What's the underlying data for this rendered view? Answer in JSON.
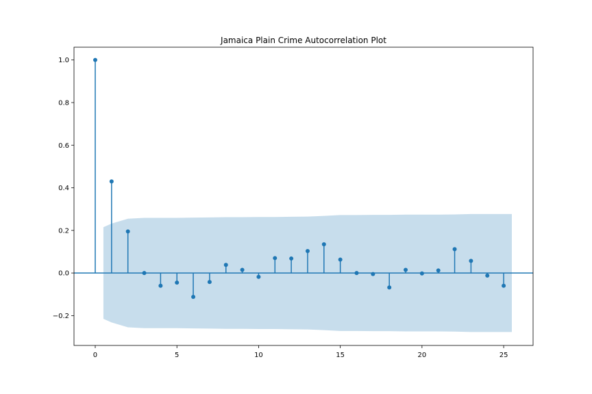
{
  "chart_data": {
    "type": "stem",
    "title": "Jamaica Plain Crime Autocorrelation Plot",
    "xlabel": "",
    "ylabel": "",
    "xlim": [
      -1.3,
      26.8
    ],
    "ylim": [
      -0.34,
      1.06
    ],
    "xticks": [
      0,
      5,
      10,
      15,
      20,
      25
    ],
    "xtick_labels": [
      "0",
      "5",
      "10",
      "15",
      "20",
      "25"
    ],
    "yticks": [
      -0.2,
      0.0,
      0.2,
      0.4,
      0.6,
      0.8,
      1.0
    ],
    "ytick_labels": [
      "−0.2",
      "0.0",
      "0.2",
      "0.4",
      "0.6",
      "0.8",
      "1.0"
    ],
    "grid": false,
    "lags": [
      0,
      1,
      2,
      3,
      4,
      5,
      6,
      7,
      8,
      9,
      10,
      11,
      12,
      13,
      14,
      15,
      16,
      17,
      18,
      19,
      20,
      21,
      22,
      23,
      24,
      25
    ],
    "values": [
      1.0,
      0.43,
      0.195,
      0.0,
      -0.06,
      -0.045,
      -0.112,
      -0.042,
      0.038,
      0.015,
      -0.018,
      0.07,
      0.068,
      0.103,
      0.135,
      0.063,
      0.0,
      -0.005,
      -0.068,
      0.015,
      -0.002,
      0.012,
      0.112,
      0.057,
      -0.012,
      -0.06
    ],
    "confidence_band": {
      "lags": [
        0.5,
        1,
        2,
        3,
        4,
        5,
        6,
        7,
        8,
        9,
        10,
        11,
        12,
        13,
        14,
        15,
        16,
        17,
        18,
        19,
        20,
        21,
        22,
        23,
        24,
        25,
        25.5
      ],
      "upper": [
        0.215,
        0.232,
        0.255,
        0.259,
        0.259,
        0.259,
        0.26,
        0.261,
        0.262,
        0.262,
        0.263,
        0.263,
        0.264,
        0.265,
        0.268,
        0.272,
        0.272,
        0.273,
        0.273,
        0.274,
        0.274,
        0.274,
        0.275,
        0.277,
        0.277,
        0.277,
        0.277
      ]
    },
    "colors": {
      "stem": "#1f77b4",
      "band": "#1f77b4",
      "band_opacity": 0.25,
      "axis": "#000000"
    }
  }
}
